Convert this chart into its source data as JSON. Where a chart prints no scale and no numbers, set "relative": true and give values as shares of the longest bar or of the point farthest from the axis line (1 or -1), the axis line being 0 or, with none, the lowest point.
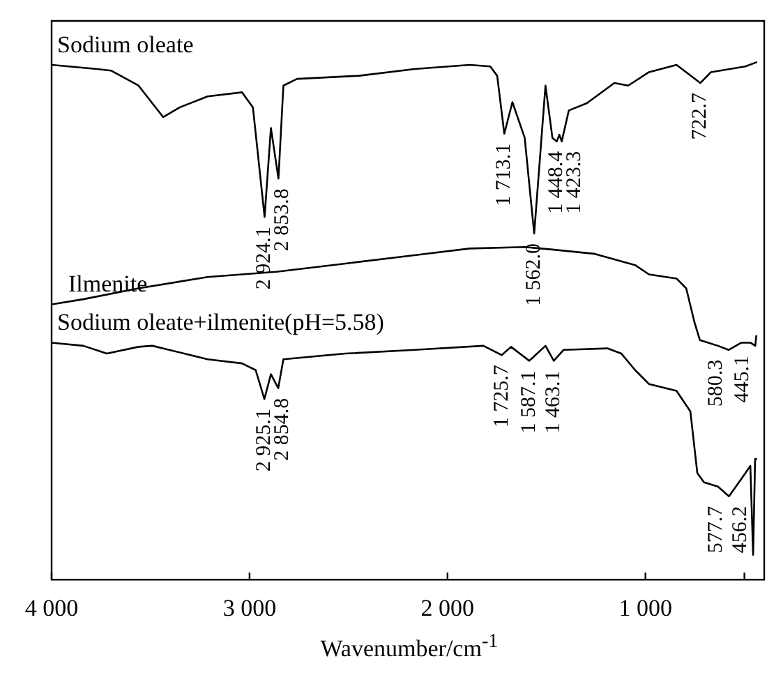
{
  "chart_data": {
    "type": "line",
    "relative": true,
    "xlabel": "Wavenumber/cm$^{-1}$",
    "xlim": [
      4000,
      400
    ],
    "xticks": [
      {
        "value": 4000,
        "label": "4 000"
      },
      {
        "value": 3000,
        "label": "3 000"
      },
      {
        "value": 2000,
        "label": "2 000"
      },
      {
        "value": 1000,
        "label": "1 000"
      },
      {
        "value": 500,
        "label": null
      }
    ],
    "legend": false,
    "grid": false,
    "marker": "none",
    "line_style": "solid",
    "series": [
      {
        "name": "Sodium oleate",
        "color": "#000000",
        "x": [
          4000,
          3770,
          3700,
          3561,
          3436,
          3352,
          3212,
          3038,
          2983,
          2924,
          2892,
          2854,
          2829,
          2760,
          2446,
          2167,
          1888,
          1784,
          1749,
          1713,
          1672,
          1610,
          1562,
          1505,
          1470,
          1448,
          1435,
          1423,
          1387,
          1296,
          1157,
          1087,
          982,
          843,
          723,
          669,
          495,
          440
        ],
        "values": [
          0.995,
          0.987,
          0.984,
          0.955,
          0.894,
          0.913,
          0.934,
          0.942,
          0.913,
          0.701,
          0.873,
          0.775,
          0.955,
          0.968,
          0.974,
          0.987,
          0.995,
          0.992,
          0.974,
          0.862,
          0.923,
          0.854,
          0.669,
          0.955,
          0.854,
          0.847,
          0.86,
          0.847,
          0.907,
          0.921,
          0.96,
          0.955,
          0.981,
          0.995,
          0.96,
          0.981,
          0.992,
          1.0
        ]
      },
      {
        "name": "Ilmenite",
        "color": "#000000",
        "x": [
          4000,
          3840,
          3561,
          3212,
          2864,
          2516,
          2167,
          1888,
          1610,
          1470,
          1261,
          1052,
          982,
          843,
          794,
          752,
          725,
          634,
          580,
          515,
          470,
          445,
          440
        ],
        "values": [
          0.532,
          0.542,
          0.563,
          0.585,
          0.595,
          0.611,
          0.627,
          0.64,
          0.643,
          0.638,
          0.63,
          0.608,
          0.59,
          0.582,
          0.563,
          0.497,
          0.463,
          0.452,
          0.444,
          0.458,
          0.458,
          0.452,
          0.471
        ]
      },
      {
        "name": "Sodium oleate+ilmenite(pH=5.58)",
        "color": "#000000",
        "x": [
          4000,
          3840,
          3721,
          3561,
          3491,
          3212,
          3038,
          2969,
          2925,
          2892,
          2855,
          2829,
          2516,
          2167,
          1819,
          1726,
          1679,
          1587,
          1505,
          1463,
          1414,
          1192,
          1122,
          1052,
          982,
          843,
          773,
          738,
          704,
          634,
          578,
          543,
          495,
          470,
          456,
          446,
          440
        ],
        "values": [
          0.458,
          0.452,
          0.437,
          0.45,
          0.452,
          0.426,
          0.418,
          0.405,
          0.349,
          0.397,
          0.37,
          0.426,
          0.437,
          0.444,
          0.452,
          0.434,
          0.45,
          0.423,
          0.452,
          0.423,
          0.444,
          0.447,
          0.437,
          0.405,
          0.378,
          0.365,
          0.325,
          0.206,
          0.188,
          0.18,
          0.161,
          0.18,
          0.206,
          0.22,
          0.048,
          0.233,
          0.233
        ]
      }
    ],
    "annotations": [
      {
        "text": "2 924.1",
        "x": 2924.1,
        "y": 0.701
      },
      {
        "text": "2 853.8",
        "x": 2853.8,
        "y": 0.775
      },
      {
        "text": "1 713.1",
        "x": 1713.1,
        "y": 0.862
      },
      {
        "text": "1 562.0",
        "x": 1562.0,
        "y": 0.669
      },
      {
        "text": "1 448.4",
        "x": 1448.4,
        "y": 0.847
      },
      {
        "text": "1 423.3",
        "x": 1423.3,
        "y": 0.847
      },
      {
        "text": "722.7",
        "x": 722.7,
        "y": 0.96
      },
      {
        "text": "580.3",
        "x": 580.3,
        "y": 0.444
      },
      {
        "text": "445.1",
        "x": 445.1,
        "y": 0.452
      },
      {
        "text": "2 925.1",
        "x": 2925.1,
        "y": 0.349
      },
      {
        "text": "2 854.8",
        "x": 2854.8,
        "y": 0.37
      },
      {
        "text": "1 725.7",
        "x": 1725.7,
        "y": 0.434
      },
      {
        "text": "1 587.1",
        "x": 1587.1,
        "y": 0.423
      },
      {
        "text": "1 463.1",
        "x": 1463.1,
        "y": 0.423
      },
      {
        "text": "577.7",
        "x": 577.7,
        "y": 0.161
      },
      {
        "text": "456.2",
        "x": 456.2,
        "y": 0.161
      }
    ]
  }
}
